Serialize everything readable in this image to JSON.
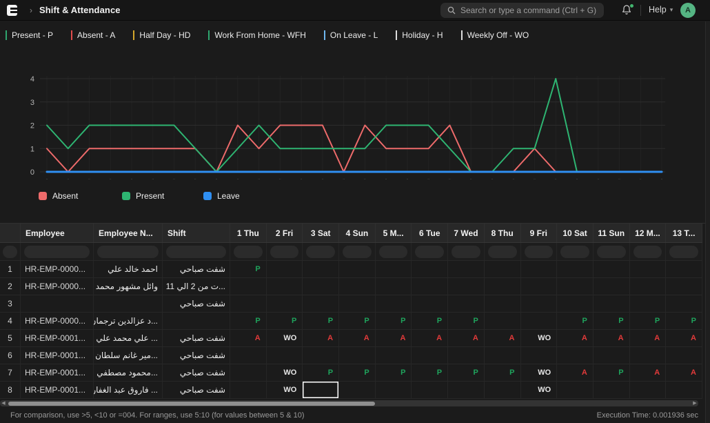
{
  "navbar": {
    "breadcrumb": "Shift & Attendance",
    "search_placeholder": "Search or type a command (Ctrl + G)",
    "help_label": "Help",
    "avatar_initial": "A"
  },
  "status_legend": [
    {
      "label": "Present - P",
      "color": "#2ea66f"
    },
    {
      "label": "Absent - A",
      "color": "#e24c4c"
    },
    {
      "label": "Half Day - HD",
      "color": "#d4a72c"
    },
    {
      "label": "Work From Home - WFH",
      "color": "#2ea66f"
    },
    {
      "label": "On Leave - L",
      "color": "#6fb7f0"
    },
    {
      "label": "Holiday - H",
      "color": "#dcdcdc"
    },
    {
      "label": "Weekly Off - WO",
      "color": "#dcdcdc"
    }
  ],
  "chart_data": {
    "type": "line",
    "x": [
      "..",
      "..",
      "..",
      "..",
      "..",
      "..",
      "..",
      "..",
      "..",
      "..",
      "..",
      "..",
      "..",
      "..",
      "..",
      "..",
      "..",
      "..",
      "..",
      "..",
      "..",
      "..",
      "..",
      "..",
      "..",
      "..",
      "..",
      "..",
      "..",
      ".."
    ],
    "series": [
      {
        "name": "Absent",
        "color": "#ee6b6b",
        "values": [
          1,
          0,
          1,
          1,
          1,
          1,
          1,
          1,
          0,
          2,
          1,
          2,
          2,
          2,
          0,
          2,
          1,
          1,
          1,
          2,
          0,
          0,
          0,
          1,
          0,
          0,
          0,
          0,
          0,
          0
        ]
      },
      {
        "name": "Present",
        "color": "#2eb572",
        "values": [
          2,
          1,
          2,
          2,
          2,
          2,
          2,
          1,
          0,
          1,
          2,
          1,
          1,
          1,
          1,
          1,
          2,
          2,
          2,
          1,
          0,
          0,
          1,
          1,
          4,
          0,
          0,
          0,
          0,
          0
        ]
      },
      {
        "name": "Leave",
        "color": "#2f8ff2",
        "values": [
          0,
          0,
          0,
          0,
          0,
          0,
          0,
          0,
          0,
          0,
          0,
          0,
          0,
          0,
          0,
          0,
          0,
          0,
          0,
          0,
          0,
          0,
          0,
          0,
          0,
          0,
          0,
          0,
          0,
          0
        ]
      }
    ],
    "yticks": [
      0,
      1,
      2,
      3,
      4
    ],
    "ylim": [
      0,
      4
    ],
    "grid": true,
    "legend_position": "bottom",
    "legend": [
      "Absent",
      "Present",
      "Leave"
    ]
  },
  "table": {
    "columns": [
      "Employee",
      "Employee N...",
      "Shift"
    ],
    "day_columns": [
      "1 Thu",
      "2 Fri",
      "3 Sat",
      "4 Sun",
      "5 M...",
      "6 Tue",
      "7 Wed",
      "8 Thu",
      "9 Fri",
      "10 Sat",
      "11 Sun",
      "12 M...",
      "13 T..."
    ],
    "value_colors": {
      "P": "#1fa35c",
      "A": "#e23a3a",
      "WO": "#e6e6e6"
    },
    "rows": [
      {
        "idx": "1",
        "employee": "HR-EMP-0000...",
        "name": "احمد خالد علي",
        "shift": "شفت صباحي",
        "days": {
          "1": "P"
        }
      },
      {
        "idx": "2",
        "employee": "HR-EMP-0000...",
        "name": "وائل مشهور محمد",
        "shift": "...ت من 2 الي 11",
        "days": {}
      },
      {
        "idx": "3",
        "employee": "",
        "name": "",
        "shift": "شفت صباحي",
        "days": {}
      },
      {
        "idx": "4",
        "employee": "HR-EMP-0000...",
        "name": "...د عزالدين ترجمان",
        "shift": "",
        "days": {
          "1": "P",
          "2": "P",
          "3": "P",
          "4": "P",
          "5": "P",
          "6": "P",
          "7": "P",
          "10": "P",
          "11": "P",
          "12": "P",
          "13": "P"
        }
      },
      {
        "idx": "5",
        "employee": "HR-EMP-0001...",
        "name": "... علي محمد علي",
        "shift": "شفت صباحي",
        "days": {
          "1": "A",
          "2": "WO",
          "3": "A",
          "4": "A",
          "5": "A",
          "6": "A",
          "7": "A",
          "8": "A",
          "9": "WO",
          "10": "A",
          "11": "A",
          "12": "A",
          "13": "A"
        }
      },
      {
        "idx": "6",
        "employee": "HR-EMP-0001...",
        "name": "...مير غانم سلطان",
        "shift": "شفت صباحي",
        "days": {}
      },
      {
        "idx": "7",
        "employee": "HR-EMP-0001...",
        "name": "...محمود مصطفي",
        "shift": "شفت صباحي",
        "days": {
          "2": "WO",
          "3": "P",
          "4": "P",
          "5": "P",
          "6": "P",
          "7": "P",
          "8": "P",
          "9": "WO",
          "10": "A",
          "11": "P",
          "12": "A",
          "13": "A"
        }
      },
      {
        "idx": "8",
        "employee": "HR-EMP-0001...",
        "name": "... فاروق عبد الغفار",
        "shift": "شفت صباحي",
        "days": {
          "2": "WO",
          "9": "WO"
        }
      }
    ],
    "selected_cell": {
      "row": 8,
      "day": 3
    }
  },
  "statusbar": {
    "hint": "For comparison, use >5, <10 or =004. For ranges, use 5:10 (for values between 5 & 10)",
    "execution_time": "Execution Time: 0.001936 sec"
  }
}
